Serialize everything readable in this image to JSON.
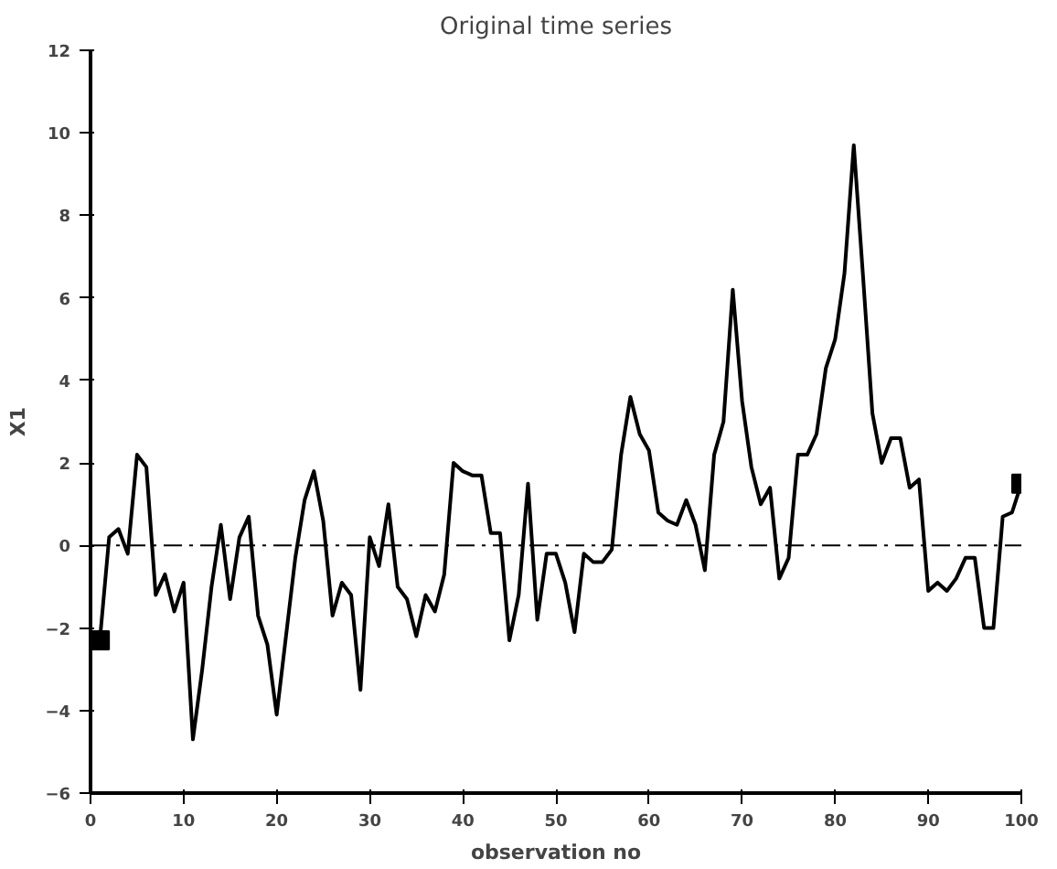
{
  "chart_data": {
    "type": "line",
    "title": "Original time series",
    "xlabel": "observation no",
    "ylabel": "X1",
    "x": [
      1,
      2,
      3,
      4,
      5,
      6,
      7,
      8,
      9,
      10,
      11,
      12,
      13,
      14,
      15,
      16,
      17,
      18,
      19,
      20,
      21,
      22,
      23,
      24,
      25,
      26,
      27,
      28,
      29,
      30,
      31,
      32,
      33,
      34,
      35,
      36,
      37,
      38,
      39,
      40,
      41,
      42,
      43,
      44,
      45,
      46,
      47,
      48,
      49,
      50,
      51,
      52,
      53,
      54,
      55,
      56,
      57,
      58,
      59,
      60,
      61,
      62,
      63,
      64,
      65,
      66,
      67,
      68,
      69,
      70,
      71,
      72,
      73,
      74,
      75,
      76,
      77,
      78,
      79,
      80,
      81,
      82,
      83,
      84,
      85,
      86,
      87,
      88,
      89,
      90,
      91,
      92,
      93,
      94,
      95,
      96,
      97,
      98,
      99,
      100
    ],
    "series": [
      {
        "color": "#000000",
        "marker": "none",
        "values": [
          -2.3,
          0.2,
          0.4,
          -0.2,
          2.2,
          1.9,
          -1.2,
          -0.7,
          -1.6,
          -0.9,
          -4.7,
          -3.0,
          -1.0,
          0.5,
          -1.3,
          0.2,
          0.7,
          -1.7,
          -2.4,
          -4.1,
          -2.2,
          -0.3,
          1.1,
          1.8,
          0.6,
          -1.7,
          -0.9,
          -1.2,
          -3.5,
          0.2,
          -0.5,
          1.0,
          -1.0,
          -1.3,
          -2.2,
          -1.2,
          -1.6,
          -0.7,
          2.0,
          1.8,
          1.7,
          1.7,
          0.3,
          0.3,
          -2.3,
          -1.2,
          1.5,
          -1.8,
          -0.2,
          -0.2,
          -0.9,
          -2.1,
          -0.2,
          -0.4,
          -0.4,
          -0.1,
          2.2,
          3.6,
          2.7,
          2.3,
          0.8,
          0.6,
          0.5,
          1.1,
          0.5,
          -0.6,
          2.2,
          3.0,
          6.2,
          3.5,
          1.9,
          1.0,
          1.4,
          -0.8,
          -0.3,
          2.2,
          2.2,
          2.7,
          4.3,
          5.0,
          6.6,
          9.7,
          6.5,
          3.2,
          2.0,
          2.6,
          2.6,
          1.4,
          1.6,
          -1.1,
          -0.9,
          -1.1,
          -0.8,
          -0.3,
          -0.3,
          -2.0,
          -2.0,
          0.7,
          0.8,
          1.5
        ]
      },
      {
        "type": "scatter",
        "color": "#000000",
        "marker": "square",
        "x": [
          1,
          100
        ],
        "values": [
          -2.3,
          1.5
        ]
      }
    ],
    "xlim": [
      0,
      100
    ],
    "xticks": [
      0,
      10,
      20,
      30,
      40,
      50,
      60,
      70,
      80,
      90,
      100
    ],
    "ylim": [
      -6,
      12
    ],
    "yticks": [
      -6,
      -4,
      -2,
      0,
      2,
      4,
      6,
      8,
      10,
      12
    ],
    "ref_lines": [
      {
        "axis": "y",
        "value": 0,
        "color": "#000000",
        "line_style": "dashed"
      }
    ],
    "grid": false
  }
}
